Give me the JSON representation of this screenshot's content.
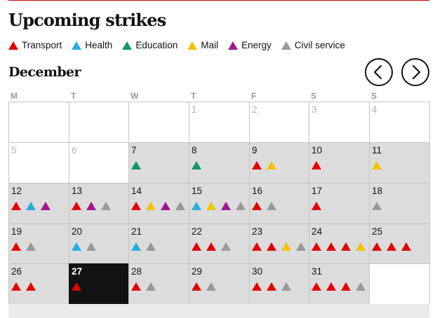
{
  "title": "Upcoming strikes",
  "legend": [
    {
      "label": "Transport",
      "color": "#e00000",
      "key": "transport"
    },
    {
      "label": "Health",
      "color": "#29abe2",
      "key": "health"
    },
    {
      "label": "Education",
      "color": "#15946f",
      "key": "education"
    },
    {
      "label": "Mail",
      "color": "#f2c200",
      "key": "mail"
    },
    {
      "label": "Energy",
      "color": "#a1178c",
      "key": "energy"
    },
    {
      "label": "Civil service",
      "color": "#999999",
      "key": "civil_service"
    }
  ],
  "calendar": {
    "month": "December",
    "prev_icon": "chevron-left-icon",
    "next_icon": "chevron-right-icon",
    "weekdays": [
      "M",
      "T",
      "W",
      "T",
      "F",
      "S",
      "S"
    ],
    "today": "27",
    "weeks": [
      [
        {
          "day": "",
          "strikes": [],
          "style": "empty"
        },
        {
          "day": "",
          "strikes": [],
          "style": "empty"
        },
        {
          "day": "",
          "strikes": [],
          "style": "empty"
        },
        {
          "day": "1",
          "strikes": [],
          "style": "faded"
        },
        {
          "day": "2",
          "strikes": [],
          "style": "faded"
        },
        {
          "day": "3",
          "strikes": [],
          "style": "faded"
        },
        {
          "day": "4",
          "strikes": [],
          "style": "faded"
        }
      ],
      [
        {
          "day": "5",
          "strikes": [],
          "style": "faded"
        },
        {
          "day": "6",
          "strikes": [],
          "style": "faded"
        },
        {
          "day": "7",
          "strikes": [
            "education"
          ],
          "style": "normal"
        },
        {
          "day": "8",
          "strikes": [
            "education"
          ],
          "style": "normal"
        },
        {
          "day": "9",
          "strikes": [
            "transport",
            "mail"
          ],
          "style": "normal"
        },
        {
          "day": "10",
          "strikes": [
            "transport"
          ],
          "style": "normal"
        },
        {
          "day": "11",
          "strikes": [
            "mail"
          ],
          "style": "normal"
        }
      ],
      [
        {
          "day": "12",
          "strikes": [
            "transport",
            "health",
            "energy"
          ],
          "style": "normal"
        },
        {
          "day": "13",
          "strikes": [
            "transport",
            "energy",
            "civil_service"
          ],
          "style": "normal"
        },
        {
          "day": "14",
          "strikes": [
            "transport",
            "mail",
            "energy",
            "civil_service"
          ],
          "style": "normal"
        },
        {
          "day": "15",
          "strikes": [
            "health",
            "mail",
            "energy",
            "civil_service"
          ],
          "style": "normal"
        },
        {
          "day": "16",
          "strikes": [
            "transport",
            "civil_service"
          ],
          "style": "normal"
        },
        {
          "day": "17",
          "strikes": [
            "transport"
          ],
          "style": "normal"
        },
        {
          "day": "18",
          "strikes": [
            "civil_service"
          ],
          "style": "normal"
        }
      ],
      [
        {
          "day": "19",
          "strikes": [
            "transport",
            "civil_service"
          ],
          "style": "normal"
        },
        {
          "day": "20",
          "strikes": [
            "health",
            "civil_service"
          ],
          "style": "normal"
        },
        {
          "day": "21",
          "strikes": [
            "health",
            "civil_service"
          ],
          "style": "normal"
        },
        {
          "day": "22",
          "strikes": [
            "transport",
            "transport",
            "civil_service"
          ],
          "style": "normal"
        },
        {
          "day": "23",
          "strikes": [
            "transport",
            "transport",
            "mail",
            "civil_service"
          ],
          "style": "normal"
        },
        {
          "day": "24",
          "strikes": [
            "transport",
            "transport",
            "transport",
            "mail"
          ],
          "style": "normal"
        },
        {
          "day": "25",
          "strikes": [
            "transport",
            "transport",
            "transport"
          ],
          "style": "normal"
        }
      ],
      [
        {
          "day": "26",
          "strikes": [
            "transport",
            "transport"
          ],
          "style": "normal"
        },
        {
          "day": "27",
          "strikes": [
            "transport"
          ],
          "style": "today"
        },
        {
          "day": "28",
          "strikes": [
            "transport",
            "civil_service"
          ],
          "style": "normal"
        },
        {
          "day": "29",
          "strikes": [
            "transport",
            "civil_service"
          ],
          "style": "normal"
        },
        {
          "day": "30",
          "strikes": [
            "transport",
            "transport",
            "civil_service"
          ],
          "style": "normal"
        },
        {
          "day": "31",
          "strikes": [
            "transport",
            "transport",
            "transport",
            "civil_service"
          ],
          "style": "normal"
        },
        {
          "day": "",
          "strikes": [],
          "style": "empty"
        }
      ]
    ]
  }
}
